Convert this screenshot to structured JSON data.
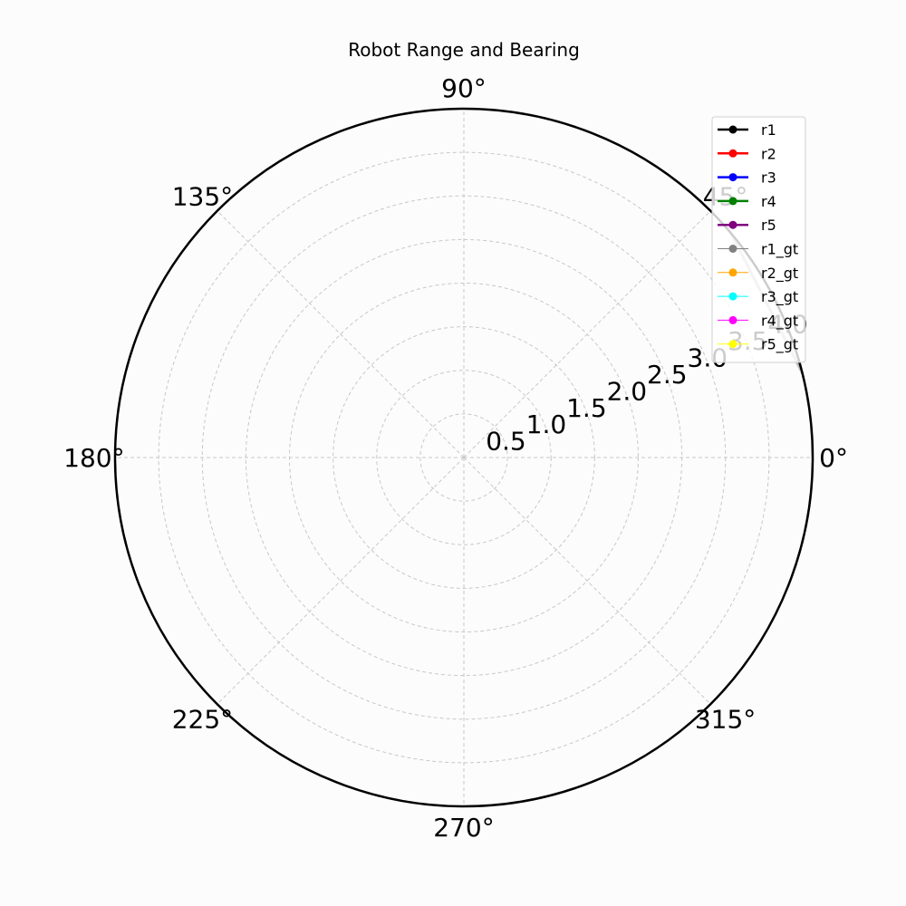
{
  "chart_data": {
    "type": "polar-line",
    "title": "Robot Range and Bearing",
    "theta_ticks": [
      {
        "deg": 0,
        "label": "0°"
      },
      {
        "deg": 45,
        "label": "45°"
      },
      {
        "deg": 90,
        "label": "90°"
      },
      {
        "deg": 135,
        "label": "135°"
      },
      {
        "deg": 180,
        "label": "180°"
      },
      {
        "deg": 225,
        "label": "225°"
      },
      {
        "deg": 270,
        "label": "270°"
      },
      {
        "deg": 315,
        "label": "315°"
      }
    ],
    "r_ticks": [
      {
        "r": 0.5,
        "label": "0.5"
      },
      {
        "r": 1.0,
        "label": "1.0"
      },
      {
        "r": 1.5,
        "label": "1.5"
      },
      {
        "r": 2.0,
        "label": "2.0"
      },
      {
        "r": 2.5,
        "label": "2.5"
      },
      {
        "r": 3.0,
        "label": "3.0"
      },
      {
        "r": 3.5,
        "label": "3.5"
      },
      {
        "r": 4.0,
        "label": "4.0"
      }
    ],
    "rlim": [
      0,
      4.0
    ],
    "r_label_angle_deg": 22.5,
    "grid": true,
    "legend_position": "top-right",
    "series": [
      {
        "name": "r1",
        "color": "#000000",
        "kind": "estimate",
        "points": []
      },
      {
        "name": "r2",
        "color": "#ff0000",
        "kind": "estimate",
        "points": []
      },
      {
        "name": "r3",
        "color": "#0000ff",
        "kind": "estimate",
        "points": []
      },
      {
        "name": "r4",
        "color": "#008000",
        "kind": "estimate",
        "points": []
      },
      {
        "name": "r5",
        "color": "#800080",
        "kind": "estimate",
        "points": []
      },
      {
        "name": "r1_gt",
        "color": "#808080",
        "kind": "ground-truth",
        "points": []
      },
      {
        "name": "r2_gt",
        "color": "#ffa500",
        "kind": "ground-truth",
        "points": []
      },
      {
        "name": "r3_gt",
        "color": "#00ffff",
        "kind": "ground-truth",
        "points": []
      },
      {
        "name": "r4_gt",
        "color": "#ff00ff",
        "kind": "ground-truth",
        "points": []
      },
      {
        "name": "r5_gt",
        "color": "#ffff00",
        "kind": "ground-truth",
        "points": []
      }
    ],
    "visible_traces": [
      {
        "name": "upper-right trace",
        "color": "#c0c0c0",
        "points": [
          {
            "theta_deg": 40,
            "r": 4.0
          },
          {
            "theta_deg": 14,
            "r": 4.0
          }
        ]
      }
    ]
  }
}
